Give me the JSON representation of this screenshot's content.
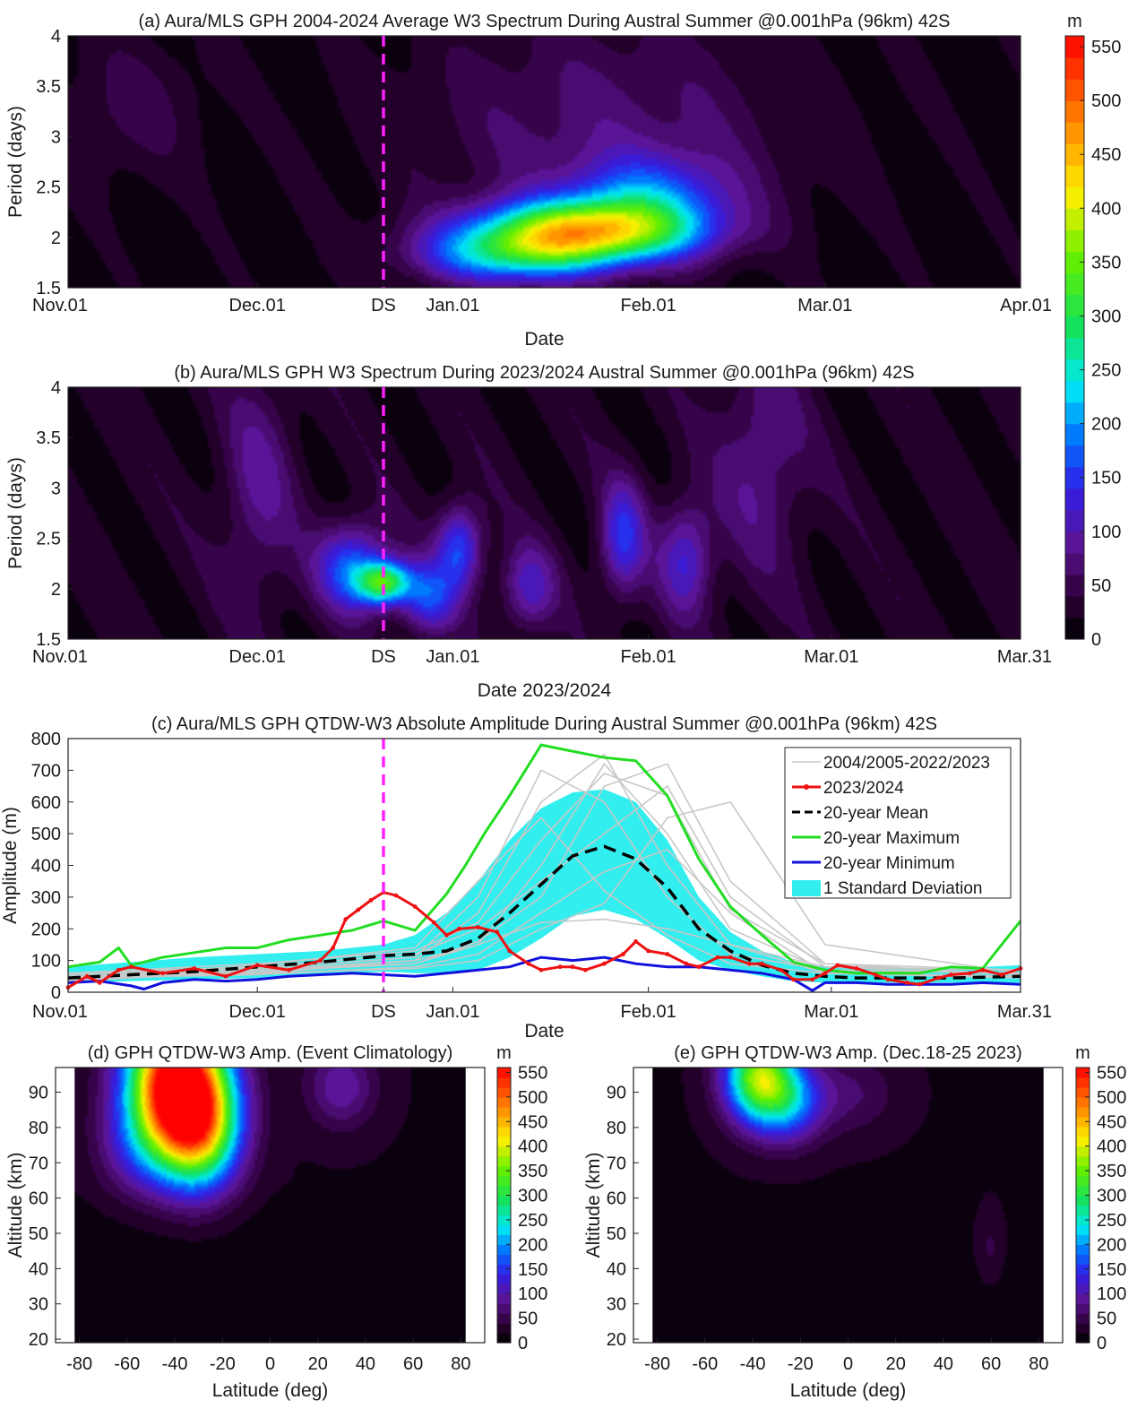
{
  "chart_data": [
    {
      "id": "a",
      "type": "heatmap",
      "title": "(a) Aura/MLS GPH 2004-2024 Average W3 Spectrum During Austral Summer @0.001hPa (96km) 42S",
      "xlabel": "Date",
      "ylabel": "Period (days)",
      "xticks": [
        {
          "day": 0,
          "label": "Nov.01"
        },
        {
          "day": 30,
          "label": "Dec.01"
        },
        {
          "day": 50,
          "label": "DS"
        },
        {
          "day": 61,
          "label": "Jan.01"
        },
        {
          "day": 92,
          "label": "Feb.01"
        },
        {
          "day": 120,
          "label": "Mar.01"
        },
        {
          "day": 151,
          "label": "Apr.01"
        }
      ],
      "yticks": [
        "1.5",
        "2",
        "2.5",
        "3",
        "3.5",
        "4"
      ],
      "xlim": [
        0,
        151
      ],
      "ylim": [
        1.5,
        4
      ],
      "solstice_day": 50,
      "peaks": [
        {
          "day": 82,
          "period": 2.05,
          "amp": 370,
          "sx": 12,
          "sy": 0.22
        },
        {
          "day": 70,
          "period": 1.8,
          "amp": 180,
          "sx": 10,
          "sy": 0.2
        },
        {
          "day": 92,
          "period": 2.4,
          "amp": 130,
          "sx": 9,
          "sy": 0.3
        },
        {
          "day": 10,
          "period": 3.3,
          "amp": 35,
          "sx": 8,
          "sy": 0.5
        },
        {
          "day": 85,
          "period": 3.1,
          "amp": 55,
          "sx": 22,
          "sy": 0.8
        }
      ],
      "background": 22
    },
    {
      "id": "b",
      "type": "heatmap",
      "title": "(b) Aura/MLS GPH W3 Spectrum During 2023/2024 Austral Summer @0.001hPa (96km) 42S",
      "xlabel": "Date 2023/2024",
      "ylabel": "Period (days)",
      "xticks": [
        {
          "day": 0,
          "label": "Nov.01"
        },
        {
          "day": 30,
          "label": "Dec.01"
        },
        {
          "day": 50,
          "label": "DS"
        },
        {
          "day": 61,
          "label": "Jan.01"
        },
        {
          "day": 92,
          "label": "Feb.01"
        },
        {
          "day": 121,
          "label": "Mar.01"
        },
        {
          "day": 151,
          "label": "Mar.31"
        }
      ],
      "yticks": [
        "1.5",
        "2",
        "2.5",
        "3",
        "3.5",
        "4"
      ],
      "xlim": [
        0,
        151
      ],
      "ylim": [
        1.5,
        4
      ],
      "solstice_day": 50,
      "peaks": [
        {
          "day": 50,
          "period": 2.05,
          "amp": 270,
          "sx": 3,
          "sy": 0.15
        },
        {
          "day": 45,
          "period": 2.2,
          "amp": 150,
          "sx": 4,
          "sy": 0.3
        },
        {
          "day": 57,
          "period": 1.9,
          "amp": 130,
          "sx": 3,
          "sy": 0.25
        },
        {
          "day": 62,
          "period": 2.4,
          "amp": 140,
          "sx": 2.5,
          "sy": 0.3
        },
        {
          "day": 88,
          "period": 2.5,
          "amp": 120,
          "sx": 2.5,
          "sy": 0.4
        },
        {
          "day": 98,
          "period": 2.3,
          "amp": 100,
          "sx": 3,
          "sy": 0.4
        },
        {
          "day": 73,
          "period": 2.0,
          "amp": 90,
          "sx": 3,
          "sy": 0.3
        },
        {
          "day": 30,
          "period": 3.0,
          "amp": 60,
          "sx": 4,
          "sy": 0.8
        },
        {
          "day": 110,
          "period": 3.3,
          "amp": 60,
          "sx": 5,
          "sy": 0.8
        }
      ],
      "background": 40
    },
    {
      "id": "c",
      "type": "line",
      "title": "(c) Aura/MLS GPH QTDW-W3 Absolute Amplitude During Austral Summer @0.001hPa (96km) 42S",
      "xlabel": "Date",
      "ylabel": "Amplitude (m)",
      "xticks": [
        {
          "day": 0,
          "label": "Nov.01"
        },
        {
          "day": 30,
          "label": "Dec.01"
        },
        {
          "day": 50,
          "label": "DS"
        },
        {
          "day": 61,
          "label": "Jan.01"
        },
        {
          "day": 92,
          "label": "Feb.01"
        },
        {
          "day": 121,
          "label": "Mar.01"
        },
        {
          "day": 151,
          "label": "Mar.31"
        }
      ],
      "yticks": [
        0,
        100,
        200,
        300,
        400,
        500,
        600,
        700,
        800
      ],
      "xlim": [
        0,
        151
      ],
      "ylim": [
        0,
        800
      ],
      "solstice_day": 50,
      "legend_position": "top-right",
      "legend": [
        {
          "key": "years",
          "label": "2004/2005-2022/2023",
          "color": "#c8c8c8",
          "style": "thin"
        },
        {
          "key": "current",
          "label": "2023/2024",
          "color": "#ee1111",
          "style": "marker"
        },
        {
          "key": "mean",
          "label": "20-year Mean",
          "color": "#000000",
          "style": "dash"
        },
        {
          "key": "max",
          "label": "20-year Maximum",
          "color": "#22dd22",
          "style": "solid"
        },
        {
          "key": "min",
          "label": "20-year Minimum",
          "color": "#1111dd",
          "style": "solid"
        },
        {
          "key": "std",
          "label": "1 Standard Deviation",
          "color": "#33eeee",
          "style": "patch"
        }
      ],
      "series": {
        "mean": {
          "x": [
            0,
            10,
            20,
            30,
            40,
            50,
            55,
            60,
            65,
            70,
            75,
            80,
            85,
            90,
            95,
            100,
            105,
            110,
            115,
            120,
            125,
            130,
            140,
            151
          ],
          "y": [
            45,
            55,
            65,
            80,
            95,
            115,
            120,
            130,
            170,
            250,
            340,
            430,
            460,
            420,
            330,
            200,
            130,
            85,
            60,
            50,
            45,
            45,
            45,
            50
          ]
        },
        "std_upper": {
          "x": [
            0,
            10,
            20,
            30,
            40,
            50,
            55,
            60,
            65,
            70,
            75,
            80,
            85,
            90,
            95,
            100,
            105,
            110,
            115,
            120,
            125,
            130,
            140,
            151
          ],
          "y": [
            80,
            95,
            110,
            120,
            130,
            150,
            180,
            250,
            350,
            480,
            580,
            630,
            640,
            600,
            480,
            300,
            190,
            130,
            95,
            80,
            75,
            75,
            75,
            85
          ]
        },
        "std_lower": {
          "x": [
            0,
            10,
            20,
            30,
            40,
            50,
            55,
            60,
            65,
            70,
            75,
            80,
            85,
            90,
            95,
            100,
            105,
            110,
            115,
            120,
            125,
            130,
            140,
            151
          ],
          "y": [
            30,
            35,
            40,
            45,
            55,
            65,
            60,
            60,
            70,
            110,
            170,
            240,
            260,
            230,
            170,
            100,
            70,
            50,
            35,
            30,
            30,
            30,
            30,
            30
          ]
        },
        "max": {
          "x": [
            0,
            5,
            8,
            10,
            15,
            20,
            25,
            30,
            35,
            40,
            45,
            50,
            55,
            60,
            63,
            66,
            70,
            75,
            80,
            85,
            90,
            95,
            100,
            105,
            110,
            115,
            120,
            125,
            130,
            135,
            140,
            145,
            151
          ],
          "y": [
            80,
            95,
            140,
            85,
            110,
            125,
            140,
            140,
            165,
            180,
            195,
            225,
            195,
            310,
            400,
            500,
            620,
            780,
            760,
            740,
            730,
            620,
            420,
            270,
            180,
            95,
            70,
            60,
            60,
            60,
            80,
            75,
            225
          ]
        },
        "min": {
          "x": [
            0,
            5,
            10,
            12,
            15,
            20,
            25,
            30,
            35,
            40,
            45,
            50,
            55,
            60,
            65,
            70,
            75,
            80,
            85,
            90,
            95,
            100,
            105,
            110,
            115,
            118,
            120,
            125,
            130,
            135,
            140,
            145,
            151
          ],
          "y": [
            30,
            35,
            20,
            10,
            30,
            40,
            35,
            40,
            50,
            55,
            60,
            55,
            50,
            60,
            70,
            80,
            110,
            100,
            110,
            90,
            80,
            80,
            70,
            60,
            40,
            5,
            30,
            30,
            25,
            25,
            25,
            30,
            25
          ]
        },
        "current": {
          "x": [
            0,
            3,
            5,
            8,
            10,
            15,
            20,
            25,
            30,
            35,
            40,
            42,
            44,
            46,
            48,
            50,
            52,
            55,
            58,
            60,
            62,
            65,
            68,
            70,
            73,
            75,
            78,
            80,
            82,
            85,
            88,
            90,
            92,
            95,
            98,
            100,
            103,
            105,
            108,
            110,
            113,
            115,
            118,
            120,
            122,
            125,
            128,
            130,
            133,
            135,
            138,
            140,
            143,
            145,
            148,
            151
          ],
          "y": [
            15,
            50,
            30,
            70,
            80,
            60,
            75,
            50,
            85,
            70,
            100,
            140,
            230,
            260,
            290,
            315,
            305,
            270,
            220,
            180,
            200,
            205,
            190,
            130,
            90,
            70,
            80,
            80,
            70,
            90,
            120,
            160,
            130,
            120,
            90,
            80,
            110,
            110,
            90,
            90,
            70,
            40,
            40,
            60,
            85,
            75,
            55,
            40,
            30,
            25,
            45,
            55,
            60,
            70,
            55,
            75
          ]
        },
        "years": [
          {
            "x": [
              0,
              30,
              55,
              65,
              75,
              85,
              95,
              105,
              120,
              151
            ],
            "y": [
              50,
              70,
              90,
              150,
              400,
              720,
              500,
              200,
              70,
              60
            ]
          },
          {
            "x": [
              0,
              30,
              55,
              65,
              75,
              85,
              95,
              105,
              120,
              151
            ],
            "y": [
              40,
              60,
              100,
              250,
              600,
              750,
              400,
              150,
              60,
              50
            ]
          },
          {
            "x": [
              0,
              30,
              55,
              65,
              75,
              85,
              95,
              105,
              120,
              151
            ],
            "y": [
              60,
              80,
              120,
              200,
              350,
              500,
              650,
              300,
              80,
              70
            ]
          },
          {
            "x": [
              0,
              30,
              55,
              65,
              75,
              85,
              95,
              105,
              120,
              151
            ],
            "y": [
              45,
              55,
              80,
              120,
              250,
              380,
              450,
              250,
              60,
              50
            ]
          },
          {
            "x": [
              0,
              30,
              55,
              65,
              75,
              85,
              95,
              105,
              120,
              151
            ],
            "y": [
              55,
              75,
              110,
              300,
              700,
              600,
              300,
              120,
              70,
              60
            ]
          },
          {
            "x": [
              0,
              30,
              55,
              65,
              75,
              85,
              95,
              105,
              120,
              151
            ],
            "y": [
              35,
              65,
              90,
              160,
              300,
              650,
              720,
              350,
              90,
              55
            ]
          },
          {
            "x": [
              0,
              30,
              55,
              65,
              75,
              85,
              95,
              105,
              120,
              151
            ],
            "y": [
              50,
              60,
              75,
              100,
              200,
              280,
              550,
              600,
              150,
              60
            ]
          },
          {
            "x": [
              0,
              30,
              55,
              65,
              75,
              85,
              95,
              105,
              120,
              151
            ],
            "y": [
              45,
              85,
              140,
              350,
              550,
              320,
              180,
              90,
              60,
              45
            ]
          },
          {
            "x": [
              0,
              30,
              55,
              65,
              75,
              85,
              95,
              105,
              120,
              151
            ],
            "y": [
              40,
              70,
              100,
              150,
              220,
              230,
              200,
              150,
              80,
              55
            ]
          },
          {
            "x": [
              0,
              30,
              55,
              65,
              75,
              85,
              95,
              105,
              120,
              151
            ],
            "y": [
              60,
              90,
              130,
              220,
              480,
              690,
              620,
              260,
              90,
              70
            ]
          }
        ]
      }
    },
    {
      "id": "d",
      "type": "heatmap",
      "title": "(d) GPH QTDW-W3 Amp. (Event Climatology)",
      "xlabel": "Latitude (deg)",
      "ylabel": "Altitude (km)",
      "xticks": [
        "-80",
        "-60",
        "-40",
        "-20",
        "0",
        "20",
        "40",
        "60",
        "80"
      ],
      "yticks": [
        "20",
        "30",
        "40",
        "50",
        "60",
        "70",
        "80",
        "90"
      ],
      "xlim": [
        -90,
        90
      ],
      "ylim": [
        19,
        97
      ],
      "data_xrange": [
        -82,
        82
      ],
      "peaks": [
        {
          "lat": -40,
          "alt": 94,
          "amp": 560,
          "slat": 14,
          "salt": 14
        },
        {
          "lat": -30,
          "alt": 80,
          "amp": 330,
          "slat": 12,
          "salt": 12
        },
        {
          "lat": -55,
          "alt": 75,
          "amp": 80,
          "slat": 12,
          "salt": 10
        },
        {
          "lat": 30,
          "alt": 92,
          "amp": 80,
          "slat": 10,
          "salt": 8
        }
      ],
      "background": 15
    },
    {
      "id": "e",
      "type": "heatmap",
      "title": "(e) GPH QTDW-W3 Amp. (Dec.18-25 2023)",
      "xlabel": "Latitude (deg)",
      "ylabel": "Altitude (km)",
      "xticks": [
        "-80",
        "-60",
        "-40",
        "-20",
        "0",
        "20",
        "40",
        "60",
        "80"
      ],
      "yticks": [
        "20",
        "30",
        "40",
        "50",
        "60",
        "70",
        "80",
        "90"
      ],
      "xlim": [
        -90,
        90
      ],
      "ylim": [
        19,
        97
      ],
      "data_xrange": [
        -82,
        82
      ],
      "peaks": [
        {
          "lat": -38,
          "alt": 95,
          "amp": 330,
          "slat": 10,
          "salt": 9
        },
        {
          "lat": -25,
          "alt": 88,
          "amp": 160,
          "slat": 10,
          "salt": 8
        },
        {
          "lat": 0,
          "alt": 90,
          "amp": 45,
          "slat": 14,
          "salt": 8
        },
        {
          "lat": 60,
          "alt": 45,
          "amp": 35,
          "slat": 5,
          "salt": 8
        }
      ],
      "background": 14
    }
  ],
  "colorbar": {
    "unit": "m",
    "ticks": [
      0,
      50,
      100,
      150,
      200,
      250,
      300,
      350,
      400,
      450,
      500,
      550
    ],
    "max": 560
  }
}
